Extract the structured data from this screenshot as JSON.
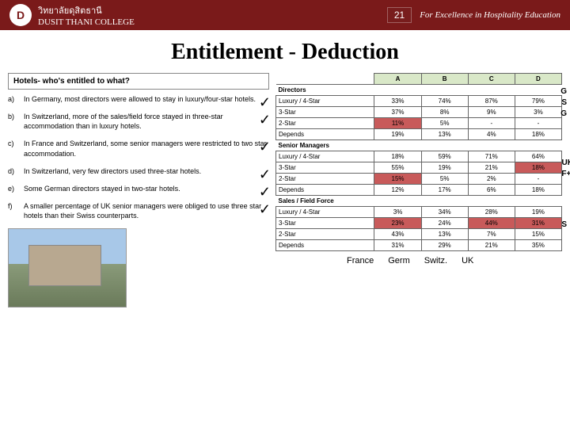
{
  "header": {
    "logo_initial": "D",
    "thai_name": "วิทยาลัยดุสิตธานี",
    "college_name": "DUSIT THANI COLLEGE",
    "page_number": "21",
    "tagline": "For Excellence in Hospitality Education"
  },
  "title": "Entitlement - Deduction",
  "question": "Hotels- who's entitled to what?",
  "statements": [
    {
      "letter": "a)",
      "text": "In Germany, most directors were allowed to stay in luxury/four-star hotels.",
      "check": true
    },
    {
      "letter": "b)",
      "text": "In Switzerland, more of the sales/field force stayed in three-star accommodation than in luxury hotels.",
      "check": true
    },
    {
      "letter": "c)",
      "text": "In France and Switzerland, some senior managers were restricted to two star accommodation.",
      "check": true
    },
    {
      "letter": "d)",
      "text": "In Switzerland, very few directors used three-star hotels.",
      "check": true
    },
    {
      "letter": "e)",
      "text": "Some German directors stayed in two-star hotels.",
      "check": true
    },
    {
      "letter": "f)",
      "text": "A smaller percentage of UK senior managers were obliged to use three star hotels than their Swiss counterparts.",
      "check": true
    }
  ],
  "table": {
    "columns": [
      "A",
      "B",
      "C",
      "D"
    ],
    "sections": [
      {
        "name": "Directors",
        "rows": [
          {
            "label": "Luxury / 4-Star",
            "vals": [
              "33%",
              "74%",
              "87%",
              "79%"
            ],
            "hl": []
          },
          {
            "label": "3-Star",
            "vals": [
              "37%",
              "8%",
              "9%",
              "3%"
            ],
            "hl": []
          },
          {
            "label": "2-Star",
            "vals": [
              "11%",
              "5%",
              "-",
              "-"
            ],
            "hl": [
              0
            ]
          },
          {
            "label": "Depends",
            "vals": [
              "19%",
              "13%",
              "4%",
              "18%"
            ],
            "hl": []
          }
        ]
      },
      {
        "name": "Senior Managers",
        "rows": [
          {
            "label": "Luxury / 4-Star",
            "vals": [
              "18%",
              "59%",
              "71%",
              "64%"
            ],
            "hl": []
          },
          {
            "label": "3-Star",
            "vals": [
              "55%",
              "19%",
              "21%",
              "18%"
            ],
            "hl": [
              3
            ]
          },
          {
            "label": "2-Star",
            "vals": [
              "15%",
              "5%",
              "2%",
              "-"
            ],
            "hl": [
              0
            ]
          },
          {
            "label": "Depends",
            "vals": [
              "12%",
              "17%",
              "6%",
              "18%"
            ],
            "hl": []
          }
        ]
      },
      {
        "name": "Sales / Field Force",
        "rows": [
          {
            "label": "Luxury / 4-Star",
            "vals": [
              "3%",
              "34%",
              "28%",
              "19%"
            ],
            "hl": []
          },
          {
            "label": "3-Star",
            "vals": [
              "23%",
              "24%",
              "44%",
              "31%"
            ],
            "hl": [
              0,
              2,
              3
            ]
          },
          {
            "label": "2-Star",
            "vals": [
              "43%",
              "13%",
              "7%",
              "15%"
            ],
            "hl": []
          },
          {
            "label": "Depends",
            "vals": [
              "31%",
              "29%",
              "21%",
              "35%"
            ],
            "hl": []
          }
        ]
      }
    ],
    "bottom_labels": [
      "France",
      "Germ",
      "Switz.",
      "UK"
    ]
  },
  "annotations": {
    "dir1": "G",
    "dir2": "S",
    "dir3": "G",
    "sm1": "UK",
    "sm2": "F+S",
    "sf1": "S"
  },
  "colors": {
    "header_bg": "#7a1a1a",
    "col_header_bg": "#d9e8c8",
    "highlight_bg": "#c85a5a"
  }
}
